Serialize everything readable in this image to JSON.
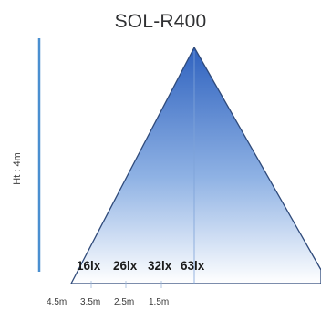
{
  "title": "SOL-R400",
  "height_label": "Ht : 4m",
  "lux_labels": [
    "16lx",
    "26lx",
    "32lx",
    "63lx"
  ],
  "distance_labels": [
    "4.5m",
    "3.5m",
    "2.5m",
    "1.5m"
  ],
  "colors": {
    "height_bar": "#4a8fd0",
    "cone_top": "#2f62bf",
    "cone_bottom": "#ffffff",
    "cone_edge": "#2f4a7a"
  }
}
